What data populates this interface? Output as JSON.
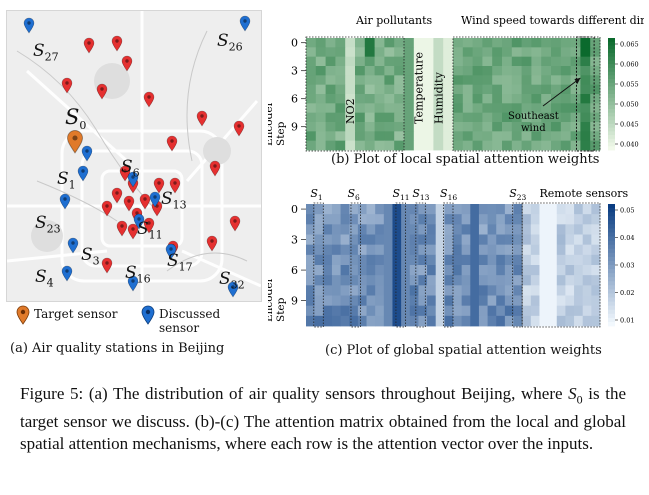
{
  "panel_a": {
    "caption": "(a) Air quality stations in Beijing",
    "legend_target": "Target sensor",
    "legend_discussed": "Discussed sensor",
    "colors": {
      "target": "#e07a2a",
      "discussed": "#1f6fd1",
      "other": "#e53030"
    },
    "labels": [
      {
        "name": "S",
        "sub": "27"
      },
      {
        "name": "S",
        "sub": "26"
      },
      {
        "name": "S",
        "sub": "0"
      },
      {
        "name": "S",
        "sub": "1"
      },
      {
        "name": "S",
        "sub": "6"
      },
      {
        "name": "S",
        "sub": "13"
      },
      {
        "name": "S",
        "sub": "23"
      },
      {
        "name": "S",
        "sub": "11"
      },
      {
        "name": "S",
        "sub": "3"
      },
      {
        "name": "S",
        "sub": "17"
      },
      {
        "name": "S",
        "sub": "4"
      },
      {
        "name": "S",
        "sub": "16"
      },
      {
        "name": "S",
        "sub": "32"
      }
    ]
  },
  "panel_b": {
    "caption": "(b) Plot of local spatial attention weights",
    "group_labels": [
      "Air pollutants",
      "Wind speed towards different directions"
    ],
    "column_labels": [
      "NO2",
      "Temperature",
      "Humidity"
    ],
    "annotation": [
      "Southeast",
      "wind"
    ],
    "y_title": [
      "Encoder",
      "Step"
    ],
    "y_ticks": [
      "0",
      "3",
      "6",
      "9"
    ],
    "colorbar_ticks": [
      "0.065",
      "0.060",
      "0.055",
      "0.050",
      "0.045",
      "0.040"
    ],
    "color_low": "#f1f9ea",
    "color_high": "#0b6a2d"
  },
  "panel_c": {
    "caption": "(c) Plot of global spatial attention weights",
    "top_labels": [
      {
        "name": "S",
        "sub": "1"
      },
      {
        "name": "S",
        "sub": "6"
      },
      {
        "name": "S",
        "sub": "11"
      },
      {
        "name": "S",
        "sub": "13"
      },
      {
        "name": "S",
        "sub": "16"
      },
      {
        "name": "S",
        "sub": "23"
      }
    ],
    "remote_label": "Remote sensors",
    "y_title": [
      "Encoder",
      "Step"
    ],
    "y_ticks": [
      "0",
      "3",
      "6",
      "9"
    ],
    "colorbar_ticks": [
      "0.05",
      "0.04",
      "0.03",
      "0.02",
      "0.01"
    ],
    "color_low": "#f2f8fd",
    "color_high": "#0a3d82"
  },
  "figure_caption": {
    "prefix": "Figure 5: (a) The distribution of air quality sensors throughout Beijing, where ",
    "var_name": "S",
    "var_sub": "0",
    "suffix": " is the target sensor we discuss. (b)-(c) The attention matrix obtained from the local and global spatial attention mechanisms, where each row is the attention vector over the inputs."
  }
}
